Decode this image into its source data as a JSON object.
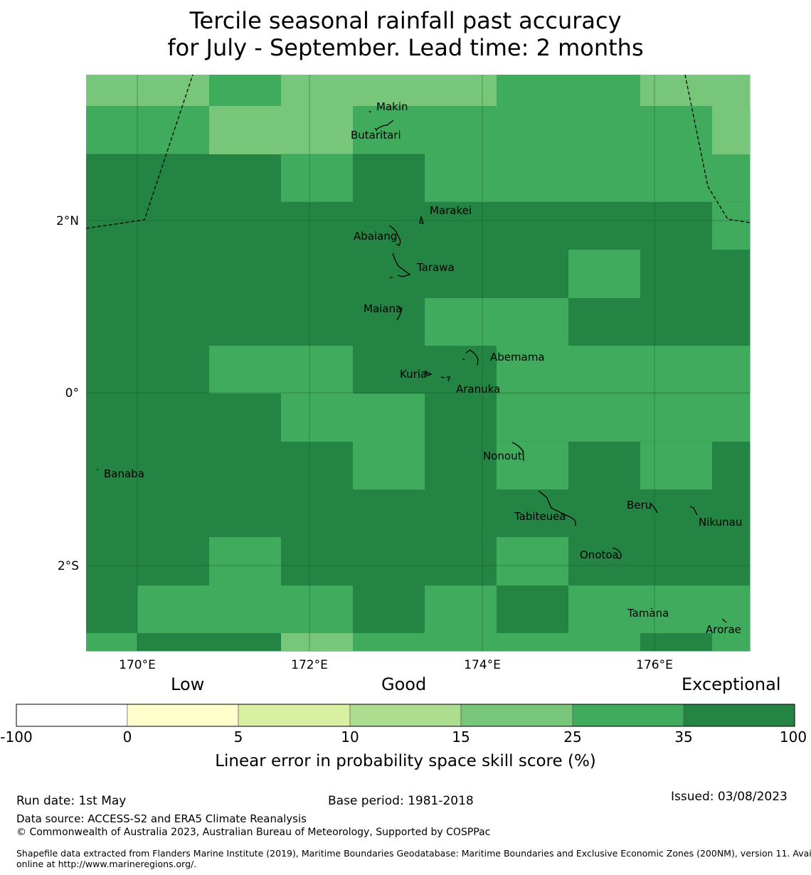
{
  "title": {
    "line1": "Tercile seasonal rainfall past accuracy",
    "line2": "for July - September. Lead time: 2 months"
  },
  "map": {
    "grid_cols": 9,
    "grid_rows": 12,
    "cells": [
      [
        4,
        5,
        5,
        4,
        4,
        5,
        5,
        5,
        4
      ],
      [
        5,
        5,
        4,
        5,
        5,
        5,
        5,
        5,
        5
      ],
      [
        6,
        6,
        5,
        6,
        5,
        5,
        5,
        5,
        5
      ],
      [
        6,
        6,
        6,
        6,
        6,
        6,
        6,
        6,
        6
      ],
      [
        6,
        6,
        6,
        6,
        6,
        6,
        6,
        6,
        6
      ],
      [
        6,
        6,
        6,
        6,
        6,
        6,
        6,
        6,
        6
      ],
      [
        6,
        6,
        6,
        6,
        6,
        6,
        6,
        6,
        6
      ],
      [
        6,
        6,
        5,
        5,
        6,
        5,
        5,
        5,
        5
      ],
      [
        6,
        6,
        6,
        5,
        6,
        6,
        6,
        6,
        6
      ],
      [
        6,
        6,
        6,
        6,
        6,
        6,
        6,
        6,
        6
      ],
      [
        6,
        6,
        6,
        6,
        6,
        6,
        6,
        6,
        6
      ],
      [
        6,
        6,
        6,
        6,
        6,
        6,
        6,
        6,
        6
      ]
    ],
    "x_ticks": [
      "170°E",
      "172°E",
      "174°E",
      "176°E"
    ],
    "y_ticks": [
      "2°N",
      "0°",
      "2°S"
    ],
    "islands": [
      {
        "name": "Makin",
        "lon": 172.9,
        "lat": 3.35
      },
      {
        "name": "Butaritari",
        "lon": 172.8,
        "lat": 3.05
      },
      {
        "name": "Marakei",
        "lon": 173.4,
        "lat": 2.05
      },
      {
        "name": "Abaiang",
        "lon": 173.0,
        "lat": 1.83
      },
      {
        "name": "Tarawa",
        "lon": 173.2,
        "lat": 1.45
      },
      {
        "name": "Maiana",
        "lon": 173.0,
        "lat": 0.95
      },
      {
        "name": "Abemama",
        "lon": 173.9,
        "lat": 0.4
      },
      {
        "name": "Kuria",
        "lon": 173.4,
        "lat": 0.22
      },
      {
        "name": "Aranuka",
        "lon": 173.6,
        "lat": 0.05
      },
      {
        "name": "Banaba",
        "lon": 169.5,
        "lat": -0.88
      },
      {
        "name": "Nonouti",
        "lon": 174.4,
        "lat": -0.68
      },
      {
        "name": "Tabiteuea",
        "lon": 174.8,
        "lat": -1.4
      },
      {
        "name": "Beru",
        "lon": 176.0,
        "lat": -1.33
      },
      {
        "name": "Nikunau",
        "lon": 176.45,
        "lat": -1.35
      },
      {
        "name": "Onotoa",
        "lon": 175.55,
        "lat": -1.8
      },
      {
        "name": "Tamana",
        "lon": 176.0,
        "lat": -2.5
      },
      {
        "name": "Arorae",
        "lon": 176.8,
        "lat": -2.65
      }
    ]
  },
  "legend": {
    "category_low": "Low",
    "category_good": "Good",
    "category_exceptional": "Exceptional",
    "colors": [
      "#ffffff",
      "#ffffcc",
      "#d9f0a3",
      "#addd8e",
      "#78c679",
      "#41ab5d",
      "#238443"
    ],
    "ticks": [
      "-100",
      "0",
      "5",
      "10",
      "15",
      "25",
      "35",
      "100"
    ],
    "axis_label": "Linear error in probability space skill score (%)"
  },
  "footer": {
    "run_date": "Run date: 1st May",
    "base_period": "Base period: 1981-2018",
    "issued": "Issued: 03/08/2023",
    "data_source": "Data source: ACCESS-S2 and ERA5 Climate Reanalysis",
    "copyright": "© Commonwealth of Australia 2023, Australian Bureau of Meteorology, Supported by COSPPac",
    "shapefile_line1": "Shapefile data extracted from Flanders Marine Institute (2019), Maritime Boundaries Geodatabase: Maritime Boundaries and Exclusive Economic Zones (200NM), version 11. Available",
    "shapefile_line2": "online at http://www.marineregions.org/."
  }
}
